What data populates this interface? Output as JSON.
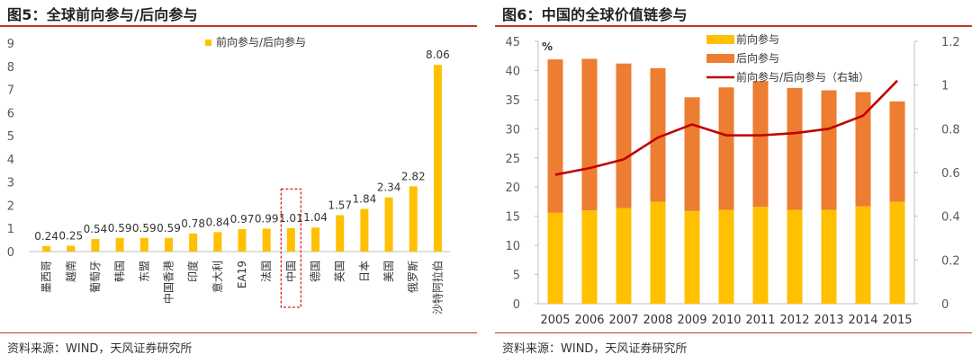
{
  "chart_data": [
    {
      "type": "bar",
      "title": "图5：全球前向参与/后向参与",
      "categories": [
        "墨西哥",
        "越南",
        "葡萄牙",
        "韩国",
        "东盟",
        "中国香港",
        "印度",
        "意大利",
        "EA19",
        "法国",
        "中国",
        "德国",
        "英国",
        "日本",
        "美国",
        "俄罗斯",
        "沙特阿拉伯"
      ],
      "series": [
        {
          "name": "前向参与/后向参与",
          "values": [
            0.24,
            0.25,
            0.54,
            0.59,
            0.59,
            0.59,
            0.78,
            0.84,
            0.97,
            0.99,
            1.01,
            1.04,
            1.57,
            1.84,
            2.34,
            2.82,
            8.06
          ]
        }
      ],
      "data_labels": [
        "0.24",
        "0.25",
        "0.54",
        "0.59",
        "0.59",
        "0.59",
        "0.78",
        "0.84",
        "0.97",
        "0.99",
        "1.01",
        "1.04",
        "1.57",
        "1.84",
        "2.34",
        "2.82",
        "8.06"
      ],
      "ylim": [
        0,
        9
      ],
      "yticks": [
        "0",
        "1",
        "2",
        "3",
        "4",
        "5",
        "6",
        "7",
        "8",
        "9"
      ],
      "highlight_category": "中国",
      "legend_position": "top",
      "grid": false,
      "colors": {
        "bar": "#FFC000",
        "highlight_box": "#E02020",
        "axis": "#BFBFBF"
      },
      "source": "资料来源：WIND，天风证券研究所"
    },
    {
      "type": "bar",
      "title": "图6：中国的全球价值链参与",
      "categories": [
        "2005",
        "2006",
        "2007",
        "2008",
        "2009",
        "2010",
        "2011",
        "2012",
        "2013",
        "2014",
        "2015"
      ],
      "series": [
        {
          "name": "前向参与",
          "kind": "stacked-bar",
          "axis": "left",
          "values": [
            15.6,
            16.0,
            16.4,
            17.5,
            15.9,
            16.1,
            16.6,
            16.1,
            16.1,
            16.7,
            17.5
          ]
        },
        {
          "name": "后向参与",
          "kind": "stacked-bar",
          "axis": "left",
          "values": [
            26.3,
            26.0,
            24.8,
            22.9,
            19.5,
            21.0,
            21.6,
            20.9,
            20.5,
            19.6,
            17.2
          ]
        },
        {
          "name": "前向参与/后向参与（右轴）",
          "kind": "line",
          "axis": "right",
          "values": [
            0.59,
            0.62,
            0.66,
            0.76,
            0.82,
            0.77,
            0.77,
            0.78,
            0.8,
            0.86,
            1.02
          ]
        }
      ],
      "ylim": [
        0,
        45
      ],
      "yticks": [
        "0",
        "5",
        "10",
        "15",
        "20",
        "25",
        "30",
        "35",
        "40",
        "45"
      ],
      "ylabel": "%",
      "y2lim": [
        0,
        1.2
      ],
      "y2ticks": [
        "0",
        "0.2",
        "0.4",
        "0.6",
        "0.8",
        "1",
        "1.2"
      ],
      "legend_position": "top-center",
      "grid": false,
      "colors": {
        "forward": "#FFC000",
        "backward": "#ED7D31",
        "line": "#C00000",
        "axis": "#BFBFBF"
      },
      "source": "资料来源：WIND，天风证券研究所"
    }
  ]
}
